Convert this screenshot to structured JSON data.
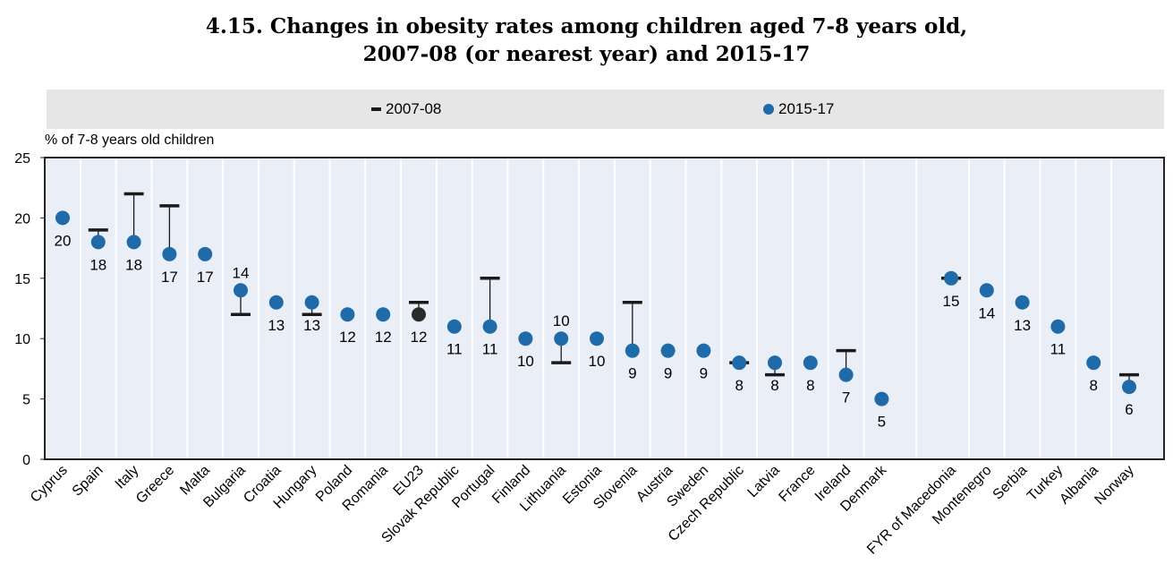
{
  "title": {
    "line1": "4.15.  Changes in obesity rates among children aged 7-8 years old,",
    "line2": "2007-08 (or nearest year) and 2015-17"
  },
  "legend": {
    "items": [
      {
        "label": "2007-08",
        "marker": "dash"
      },
      {
        "label": "2015-17",
        "marker": "dot"
      }
    ]
  },
  "colors": {
    "dot": "#1f6aa8",
    "eu_dot": "#2b2b2b",
    "marker_2007": "#1a1a1a",
    "plot_bg": "#e9eef7",
    "legend_bg": "#e6e6e6",
    "axis": "#222222",
    "separator": "#ffffff"
  },
  "chart_data": {
    "type": "scatter",
    "title": "4.15.  Changes in obesity rates among children aged 7-8 years old, 2007-08 (or nearest year) and 2015-17",
    "ylabel": "% of 7-8 years old children",
    "ylim": [
      0,
      25
    ],
    "yticks": [
      0,
      5,
      10,
      15,
      20,
      25
    ],
    "grid": false,
    "legend_position": "top",
    "categories": [
      "Cyprus",
      "Spain",
      "Italy",
      "Greece",
      "Malta",
      "Bulgaria",
      "Croatia",
      "Hungary",
      "Poland",
      "Romania",
      "EU23",
      "Slovak Republic",
      "Portugal",
      "Finland",
      "Lithuania",
      "Estonia",
      "Slovenia",
      "Austria",
      "Sweden",
      "Czech Republic",
      "Latvia",
      "France",
      "Ireland",
      "Denmark",
      "FYR of Macedonia",
      "Montenegro",
      "Serbia",
      "Turkey",
      "Albania",
      "Norway"
    ],
    "series": [
      {
        "name": "2007-08",
        "values": [
          null,
          19,
          22,
          21,
          null,
          12,
          null,
          12,
          null,
          null,
          13,
          null,
          15,
          null,
          8,
          null,
          13,
          null,
          null,
          8,
          7,
          null,
          9,
          null,
          15,
          null,
          null,
          null,
          null,
          7
        ]
      },
      {
        "name": "2015-17",
        "values": [
          20,
          18,
          18,
          17,
          17,
          14,
          13,
          13,
          12,
          12,
          12,
          11,
          11,
          10,
          10,
          10,
          9,
          9,
          9,
          8,
          8,
          8,
          7,
          5,
          15,
          14,
          13,
          11,
          8,
          6
        ]
      }
    ],
    "data_labels": [
      "20",
      "18",
      "18",
      "17",
      "17",
      "14",
      "13",
      "13",
      "12",
      "12",
      "12",
      "11",
      "11",
      "10",
      "10",
      "10",
      "9",
      "9",
      "9",
      "8",
      "8",
      "8",
      "7",
      "5",
      "15",
      "14",
      "13",
      "11",
      "8",
      "6"
    ],
    "data_label_above": [
      false,
      false,
      false,
      false,
      false,
      true,
      false,
      false,
      false,
      false,
      false,
      false,
      false,
      false,
      true,
      false,
      false,
      false,
      false,
      false,
      false,
      false,
      false,
      false,
      false,
      false,
      false,
      false,
      false,
      false
    ],
    "highlight": "EU23",
    "group_break_after": "Denmark"
  }
}
